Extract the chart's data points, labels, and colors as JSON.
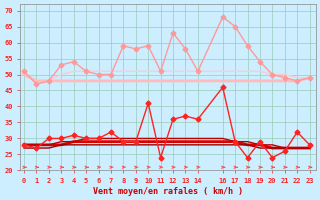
{
  "x": [
    0,
    1,
    2,
    3,
    4,
    5,
    6,
    7,
    8,
    9,
    10,
    11,
    12,
    13,
    14,
    16,
    17,
    18,
    19,
    20,
    21,
    22,
    23
  ],
  "series": [
    {
      "name": "rafales_pink_volatile",
      "y": [
        51,
        47,
        48,
        53,
        54,
        51,
        50,
        50,
        59,
        58,
        59,
        51,
        63,
        58,
        51,
        68,
        65,
        59,
        54,
        50,
        49,
        48,
        49
      ],
      "color": "#ff9999",
      "lw": 1.0,
      "marker": "D",
      "ms": 2.5
    },
    {
      "name": "moyen_pink_flat",
      "y": [
        50,
        48,
        48,
        48,
        48,
        48,
        48,
        48,
        48,
        48,
        48,
        48,
        48,
        48,
        48,
        48,
        48,
        48,
        48,
        48,
        48,
        48,
        49
      ],
      "color": "#ffbbbb",
      "lw": 2.0,
      "marker": null,
      "ms": 0
    },
    {
      "name": "moyen_pink2",
      "y": [
        51,
        47,
        48,
        50,
        51,
        51,
        51,
        51,
        51,
        51,
        51,
        51,
        51,
        51,
        51,
        51,
        51,
        51,
        51,
        50,
        50,
        49,
        49
      ],
      "color": "#ffcccc",
      "lw": 1.0,
      "marker": null,
      "ms": 0
    },
    {
      "name": "rafales_red_volatile",
      "y": [
        28,
        27,
        30,
        30,
        31,
        30,
        30,
        32,
        29,
        29,
        41,
        24,
        36,
        37,
        36,
        46,
        29,
        24,
        29,
        24,
        26,
        32,
        28
      ],
      "color": "#ff2222",
      "lw": 1.0,
      "marker": "D",
      "ms": 2.5
    },
    {
      "name": "moyen_red_flat1",
      "y": [
        28,
        28,
        28,
        28,
        29,
        29,
        29,
        29,
        29,
        29,
        29,
        29,
        29,
        29,
        29,
        29,
        29,
        28,
        28,
        27,
        27,
        27,
        27
      ],
      "color": "#dd0000",
      "lw": 2.0,
      "marker": null,
      "ms": 0
    },
    {
      "name": "moyen_red_flat2",
      "y": [
        27,
        27,
        27,
        28,
        28,
        28,
        28,
        28,
        28,
        28,
        28,
        28,
        28,
        28,
        28,
        28,
        28,
        28,
        27,
        27,
        27,
        27,
        27
      ],
      "color": "#990000",
      "lw": 1.0,
      "marker": null,
      "ms": 0
    },
    {
      "name": "moyen_red_flat3",
      "y": [
        28,
        28,
        28,
        29,
        29,
        30,
        30,
        30,
        30,
        30,
        30,
        30,
        30,
        30,
        30,
        30,
        29,
        29,
        28,
        28,
        27,
        27,
        27
      ],
      "color": "#bb0000",
      "lw": 1.0,
      "marker": null,
      "ms": 0
    }
  ],
  "arrows": {
    "x": [
      0,
      1,
      2,
      3,
      4,
      5,
      6,
      7,
      8,
      9,
      10,
      11,
      12,
      13,
      14,
      16,
      17,
      18,
      19,
      20,
      21,
      22,
      23
    ],
    "y": 21.0,
    "color": "#ff4444",
    "angles": [
      0,
      0,
      0,
      0,
      0,
      0,
      15,
      15,
      15,
      15,
      15,
      15,
      15,
      15,
      25,
      0,
      0,
      0,
      0,
      0,
      0,
      0,
      0
    ]
  },
  "xlim": [
    -0.3,
    23.5
  ],
  "ylim": [
    20,
    72
  ],
  "yticks": [
    20,
    25,
    30,
    35,
    40,
    45,
    50,
    55,
    60,
    65,
    70
  ],
  "xticks": [
    0,
    1,
    2,
    3,
    4,
    5,
    6,
    7,
    8,
    9,
    10,
    11,
    12,
    13,
    14,
    16,
    17,
    18,
    19,
    20,
    21,
    22,
    23
  ],
  "xlabel": "Vent moyen/en rafales ( km/h )",
  "bg_color": "#cceeff",
  "grid_color": "#99ccbb",
  "tick_color": "#ff2222",
  "label_color": "#cc0000"
}
